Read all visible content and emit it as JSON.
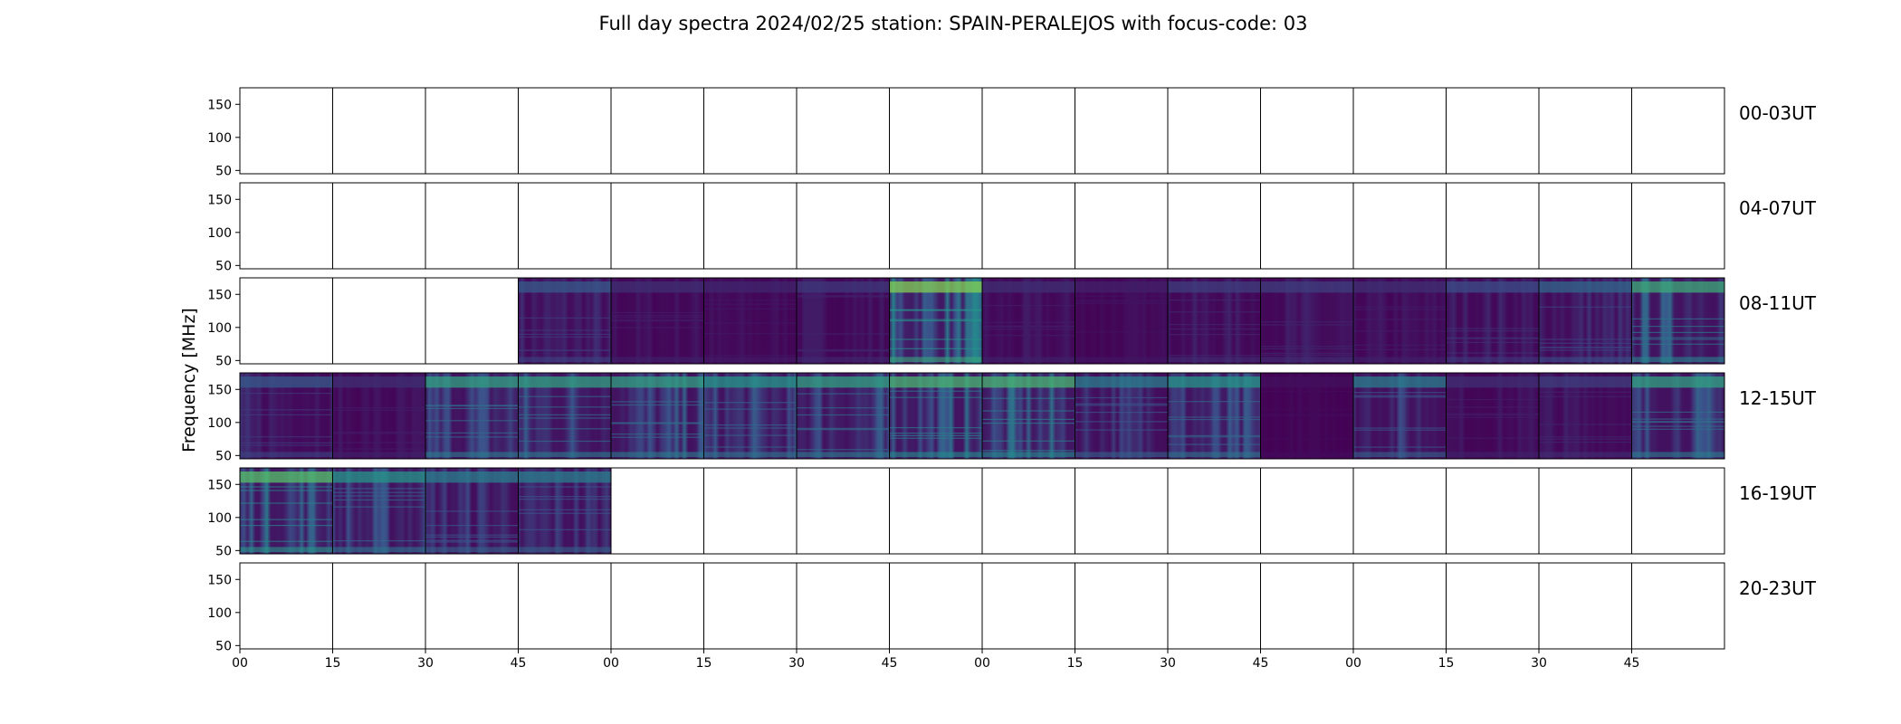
{
  "chart_data": {
    "type": "heatmap",
    "title": "Full day spectra 2024/02/25 station: SPAIN-PERALEJOS with focus-code: 03",
    "ylabel": "Frequency [MHz]",
    "xlabel": "",
    "ylim": [
      45,
      175
    ],
    "y_ticks": [
      "150",
      "100",
      "50"
    ],
    "y_tick_values": [
      150,
      100,
      50
    ],
    "x_ticks": [
      "00",
      "15",
      "30",
      "45",
      "00",
      "15",
      "30",
      "45",
      "00",
      "15",
      "30",
      "45",
      "00",
      "15",
      "30",
      "45"
    ],
    "colormap": [
      "#440154",
      "#3b528b",
      "#21918c",
      "#5ec962",
      "#fde725"
    ],
    "rows": [
      {
        "label": "00-03UT",
        "panels": [
          0,
          0,
          0,
          0,
          0,
          0,
          0,
          0,
          0,
          0,
          0,
          0,
          0,
          0,
          0,
          0
        ]
      },
      {
        "label": "04-07UT",
        "panels": [
          0,
          0,
          0,
          0,
          0,
          0,
          0,
          0,
          0,
          0,
          0,
          0,
          0,
          0,
          0,
          0
        ]
      },
      {
        "label": "08-11UT",
        "panels": [
          0,
          0,
          0,
          0.3,
          0.15,
          0.12,
          0.18,
          0.85,
          0.15,
          0.1,
          0.2,
          0.2,
          0.15,
          0.25,
          0.35,
          0.65
        ]
      },
      {
        "label": "12-15UT",
        "panels": [
          0.3,
          0.15,
          0.6,
          0.6,
          0.6,
          0.55,
          0.6,
          0.7,
          0.7,
          0.45,
          0.55,
          0.05,
          0.45,
          0.15,
          0.2,
          0.6
        ]
      },
      {
        "label": "16-19UT",
        "panels": [
          0.75,
          0.55,
          0.45,
          0.45,
          0,
          0,
          0,
          0,
          0,
          0,
          0,
          0,
          0,
          0,
          0,
          0
        ]
      },
      {
        "label": "20-23UT",
        "panels": [
          0,
          0,
          0,
          0,
          0,
          0,
          0,
          0,
          0,
          0,
          0,
          0,
          0,
          0,
          0,
          0
        ]
      }
    ]
  }
}
